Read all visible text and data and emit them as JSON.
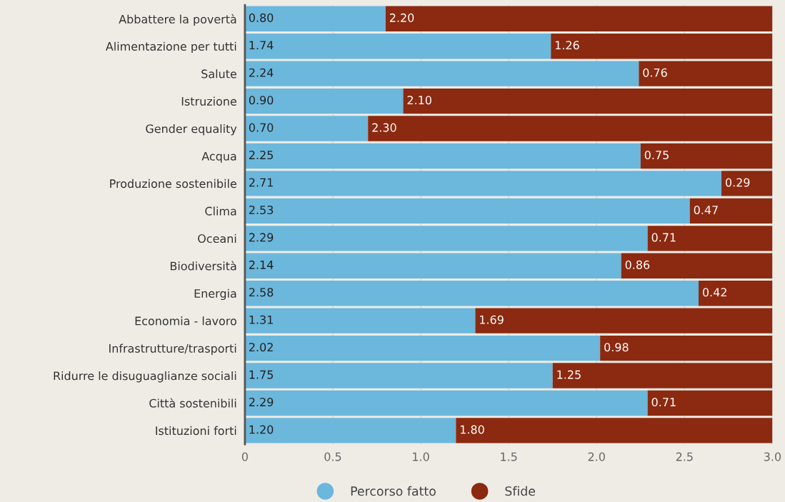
{
  "chart_data": {
    "type": "bar",
    "orientation": "horizontal",
    "stacked": true,
    "categories": [
      "Abbattere la povertà",
      "Alimentazione per tutti",
      "Salute",
      "Istruzione",
      "Gender equality",
      "Acqua",
      "Produzione sostenibile",
      "Clima",
      "Oceani",
      "Biodiversità",
      "Energia",
      "Economia - lavoro",
      "Infrastrutture/trasporti",
      "Ridurre le disuguaglianze sociali",
      "Città sostenibili",
      "Istituzioni forti"
    ],
    "series": [
      {
        "name": "Percorso fatto",
        "color": "#6cb7dc",
        "values": [
          0.8,
          1.74,
          2.24,
          0.9,
          0.7,
          2.25,
          2.71,
          2.53,
          2.29,
          2.14,
          2.58,
          1.31,
          2.02,
          1.75,
          2.29,
          1.2
        ],
        "value_labels": [
          "0.80",
          "1.74",
          "2.24",
          "0.90",
          "0.70",
          "2.25",
          "2.71",
          "2.53",
          "2.29",
          "2.14",
          "2.58",
          "1.31",
          "2.02",
          "1.75",
          "2.29",
          "1.20"
        ]
      },
      {
        "name": "Sfide",
        "color": "#8b2a10",
        "values": [
          2.2,
          1.26,
          0.76,
          2.1,
          2.3,
          0.75,
          0.29,
          0.47,
          0.71,
          0.86,
          0.42,
          1.69,
          0.98,
          1.25,
          0.71,
          1.8
        ],
        "value_labels": [
          "2.20",
          "1.26",
          "0.76",
          "2.10",
          "2.30",
          "0.75",
          "0.29",
          "0.47",
          "0.71",
          "0.86",
          "0.42",
          "1.69",
          "0.98",
          "1.25",
          "0.71",
          "1.80"
        ]
      }
    ],
    "xlim": [
      0,
      3
    ],
    "xticks": [
      0,
      0.5,
      {
        "value": 1,
        "label": "1.0"
      },
      1.5,
      {
        "value": 2,
        "label": "2.0"
      },
      2.5,
      {
        "value": 3,
        "label": "3.0"
      }
    ],
    "grid": "x",
    "legend": "bottom"
  }
}
